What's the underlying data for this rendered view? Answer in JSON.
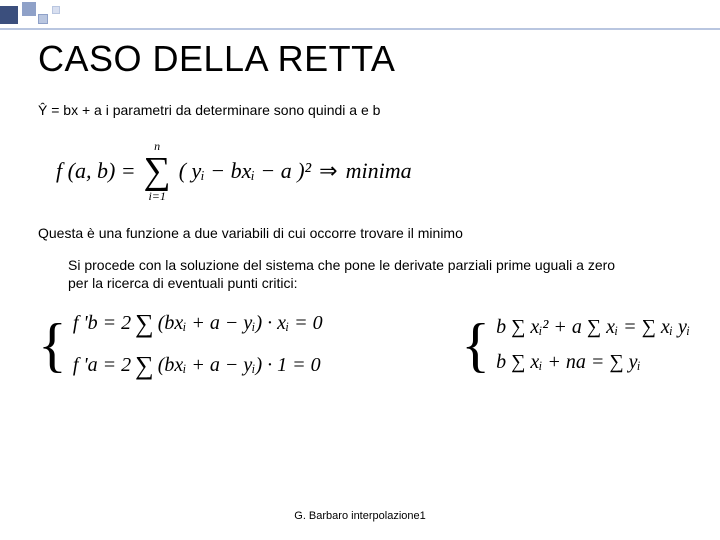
{
  "decor": {
    "colors": [
      "#3b4f7d",
      "#8fa1c8",
      "#b9c6e0",
      "#d8dff0"
    ]
  },
  "title": "CASO DELLA  RETTA",
  "line1": "Ŷ =  bx + a  i parametri da determinare sono quindi a   e   b",
  "formula": {
    "lhs": "f (a, b) = ",
    "sum_upper": "n",
    "sum_lower": "i=1",
    "body": "( yᵢ − bxᵢ − a )²",
    "arrow": "⇒",
    "rhs": "minima"
  },
  "para1": "Questa è una funzione a due variabili di cui occorre trovare il minimo",
  "para2": "Si procede con la soluzione del sistema che pone le derivate parziali prime uguali a zero per la ricerca di eventuali punti critici:",
  "system1": {
    "l1_pre": "f 'b = 2",
    "l1_body": "(bxᵢ + a − yᵢ) · xᵢ = 0",
    "l2_pre": "f 'a = 2",
    "l2_body": "(bxᵢ + a − yᵢ) · 1 = 0"
  },
  "system2": {
    "l1": "b ∑ xᵢ² + a ∑ xᵢ = ∑ xᵢ yᵢ",
    "l2": "b ∑ xᵢ + na = ∑ yᵢ"
  },
  "footer": "G. Barbaro interpolazione1"
}
